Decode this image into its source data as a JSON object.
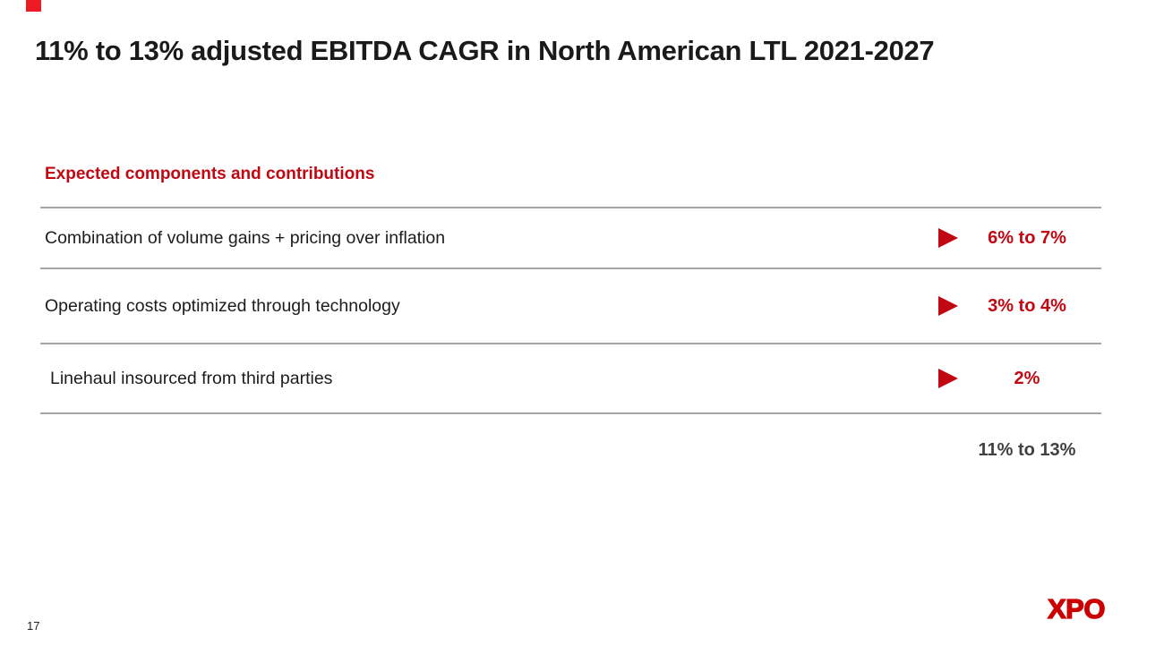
{
  "slide": {
    "title": "11% to 13% adjusted EBITDA CAGR in North American LTL 2021-2027",
    "section_heading": "Expected components and contributions",
    "rows": [
      {
        "label": "Combination of volume gains + pricing over inflation",
        "value": "6% to 7%"
      },
      {
        "label": "Operating costs optimized through technology",
        "value": "3% to 4%"
      },
      {
        "label": "Linehaul insourced from third parties",
        "value": "2%"
      }
    ],
    "total": "11% to 13%",
    "page_number": "17",
    "logo_text": "XPO",
    "icons": {
      "row_marker": "red-right-pointing-triangle"
    },
    "colors": {
      "brand_red": "#C00712",
      "logo_red": "#CC0000",
      "accent_red": "#ED1C24",
      "title_text": "#1A1A1A",
      "body_text": "#1C1C1C",
      "total_text": "#404040",
      "divider": "#A6A6A6",
      "page_bg": "#FFFFFF"
    }
  }
}
